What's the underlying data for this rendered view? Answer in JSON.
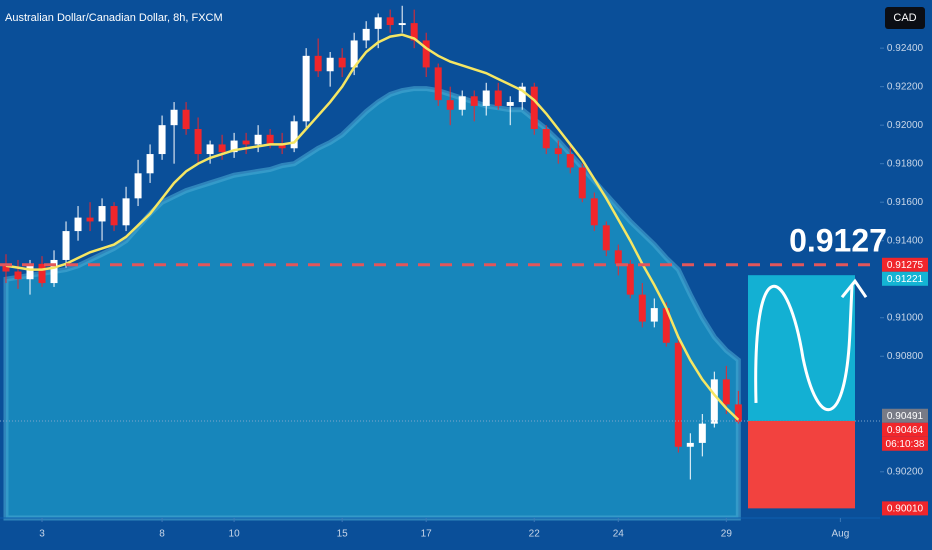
{
  "chart_data": {
    "type": "candlestick",
    "title": "Australian Dollar/Canadian Dollar, 8h, FXCM",
    "currency_button": "CAD",
    "annotation": "0.9127",
    "countdown": "06:10:38",
    "up_color": "#ffffff",
    "down_color": "#f0262b",
    "ma_color": "#f5e663",
    "cloud_color": "#1786bb",
    "xlim": [
      -0.5,
      72.8
    ],
    "ylim": [
      0.8996,
      0.9265
    ],
    "xticks": [
      3,
      {
        "value": 13,
        "label": "8"
      },
      {
        "value": 19,
        "label": "10"
      },
      {
        "value": 28,
        "label": "15"
      },
      {
        "value": 35,
        "label": "17"
      },
      {
        "value": 44,
        "label": "22"
      },
      {
        "value": 51,
        "label": "24"
      },
      {
        "value": 60,
        "label": "29"
      },
      {
        "value": 69.5,
        "label": "Aug"
      }
    ],
    "yticks": [
      {
        "value": 0.924,
        "label": "0.92400"
      },
      {
        "value": 0.922,
        "label": "0.92200"
      },
      {
        "value": 0.92,
        "label": "0.92000"
      },
      {
        "value": 0.918,
        "label": "0.91800"
      },
      {
        "value": 0.916,
        "label": "0.91600"
      },
      {
        "value": 0.914,
        "label": "0.91400"
      },
      {
        "value": 0.91,
        "label": "0.91000"
      },
      {
        "value": 0.908,
        "label": "0.90800"
      },
      {
        "value": 0.902,
        "label": "0.90200"
      }
    ],
    "open": [
      0.9128,
      0.9124,
      0.912,
      0.9128,
      0.9118,
      0.913,
      0.9145,
      0.9152,
      0.915,
      0.9158,
      0.9148,
      0.9162,
      0.9175,
      0.9185,
      0.92,
      0.9208,
      0.9198,
      0.9185,
      0.919,
      0.9186,
      0.9192,
      0.919,
      0.9195,
      0.919,
      0.9188,
      0.9202,
      0.9236,
      0.9228,
      0.9235,
      0.923,
      0.9244,
      0.925,
      0.9256,
      0.9252,
      0.9253,
      0.9244,
      0.923,
      0.9213,
      0.9208,
      0.9215,
      0.921,
      0.9218,
      0.921,
      0.9212,
      0.922,
      0.9198,
      0.9188,
      0.9185,
      0.9178,
      0.9162,
      0.9148,
      0.9135,
      0.9128,
      0.9112,
      0.9098,
      0.9105,
      0.9087,
      0.9033,
      0.9035,
      0.9045,
      0.9068,
      0.9055
    ],
    "high": [
      0.9133,
      0.913,
      0.913,
      0.9132,
      0.9135,
      0.915,
      0.9158,
      0.916,
      0.9162,
      0.916,
      0.9168,
      0.9182,
      0.919,
      0.9205,
      0.9212,
      0.9212,
      0.9204,
      0.9192,
      0.9195,
      0.9196,
      0.9196,
      0.92,
      0.9198,
      0.9196,
      0.9205,
      0.924,
      0.9245,
      0.9238,
      0.924,
      0.9248,
      0.9254,
      0.9258,
      0.926,
      0.9262,
      0.926,
      0.9248,
      0.9232,
      0.922,
      0.9218,
      0.9218,
      0.9222,
      0.9222,
      0.9215,
      0.9222,
      0.9222,
      0.92,
      0.9192,
      0.919,
      0.918,
      0.9165,
      0.915,
      0.9138,
      0.913,
      0.9118,
      0.911,
      0.9108,
      0.909,
      0.904,
      0.905,
      0.9072,
      0.9075,
      0.9062
    ],
    "low": [
      0.9118,
      0.9115,
      0.9112,
      0.9116,
      0.9116,
      0.9126,
      0.914,
      0.9145,
      0.914,
      0.9145,
      0.9145,
      0.9158,
      0.917,
      0.9182,
      0.918,
      0.9195,
      0.918,
      0.918,
      0.9182,
      0.9183,
      0.9185,
      0.9186,
      0.9188,
      0.9185,
      0.9186,
      0.9198,
      0.9225,
      0.922,
      0.9225,
      0.9226,
      0.924,
      0.924,
      0.9248,
      0.9248,
      0.924,
      0.9225,
      0.921,
      0.92,
      0.9205,
      0.9202,
      0.9205,
      0.9208,
      0.92,
      0.9208,
      0.9195,
      0.9185,
      0.918,
      0.9175,
      0.916,
      0.9145,
      0.9132,
      0.9122,
      0.911,
      0.9095,
      0.9095,
      0.9085,
      0.903,
      0.9016,
      0.9028,
      0.9043,
      0.905,
      0.9045
    ],
    "close": [
      0.9124,
      0.912,
      0.9128,
      0.9118,
      0.913,
      0.9145,
      0.9152,
      0.915,
      0.9158,
      0.9148,
      0.9162,
      0.9175,
      0.9185,
      0.92,
      0.9208,
      0.9198,
      0.9185,
      0.919,
      0.9186,
      0.9192,
      0.919,
      0.9195,
      0.919,
      0.9188,
      0.9202,
      0.9236,
      0.9228,
      0.9235,
      0.923,
      0.9244,
      0.925,
      0.9256,
      0.9252,
      0.9253,
      0.9244,
      0.923,
      0.9213,
      0.9208,
      0.9215,
      0.921,
      0.9218,
      0.921,
      0.9212,
      0.922,
      0.9198,
      0.9188,
      0.9185,
      0.9178,
      0.9162,
      0.9148,
      0.9135,
      0.9128,
      0.9112,
      0.9098,
      0.9105,
      0.9087,
      0.9033,
      0.9035,
      0.9045,
      0.9068,
      0.9055,
      0.9046
    ],
    "ma": [
      0.9127,
      0.9126,
      0.9125,
      0.9125,
      0.9126,
      0.9128,
      0.9131,
      0.9134,
      0.9136,
      0.9138,
      0.9142,
      0.9148,
      0.9154,
      0.9162,
      0.917,
      0.9176,
      0.918,
      0.9183,
      0.9185,
      0.9187,
      0.9188,
      0.9189,
      0.919,
      0.919,
      0.9191,
      0.9198,
      0.9205,
      0.9212,
      0.922,
      0.923,
      0.9238,
      0.9243,
      0.9246,
      0.9247,
      0.9245,
      0.924,
      0.9236,
      0.9233,
      0.9231,
      0.9229,
      0.9227,
      0.9224,
      0.9221,
      0.9218,
      0.9213,
      0.9206,
      0.9198,
      0.919,
      0.9182,
      0.9172,
      0.9162,
      0.9151,
      0.914,
      0.9128,
      0.9117,
      0.9105,
      0.909,
      0.9078,
      0.9068,
      0.906,
      0.9053,
      0.9047
    ],
    "cloud": [
      0.912,
      0.9121,
      0.9122,
      0.9123,
      0.9124,
      0.9125,
      0.9127,
      0.913,
      0.9133,
      0.9136,
      0.914,
      0.9147,
      0.9154,
      0.916,
      0.9163,
      0.9166,
      0.9168,
      0.917,
      0.9172,
      0.9174,
      0.9175,
      0.9176,
      0.9177,
      0.9179,
      0.918,
      0.9184,
      0.9188,
      0.9191,
      0.9195,
      0.9201,
      0.9207,
      0.9212,
      0.9216,
      0.9218,
      0.9219,
      0.9219,
      0.9218,
      0.9216,
      0.9214,
      0.9212,
      0.921,
      0.9209,
      0.9208,
      0.9208,
      0.9203,
      0.9198,
      0.9192,
      0.9185,
      0.9178,
      0.9171,
      0.9164,
      0.9157,
      0.915,
      0.9144,
      0.9138,
      0.9131,
      0.9125,
      0.9112,
      0.91,
      0.909,
      0.9083,
      0.9078
    ],
    "level": 0.91275,
    "position": {
      "entry": 0.90464,
      "target": 0.91221,
      "stop": 0.9001
    },
    "price_labels": [
      {
        "value": 0.91275,
        "label": "0.91275",
        "color": "#f0262b"
      },
      {
        "value": 0.91221,
        "label": "0.91221",
        "color": "#14b4d4"
      },
      {
        "value": 0.90491,
        "label": "0.90491",
        "color": "#787b86"
      },
      {
        "value": 0.90464,
        "label": "0.90464",
        "color": "#f0262b"
      },
      {
        "value": 0.9001,
        "label": "0.90010",
        "color": "#f0262b"
      }
    ]
  }
}
